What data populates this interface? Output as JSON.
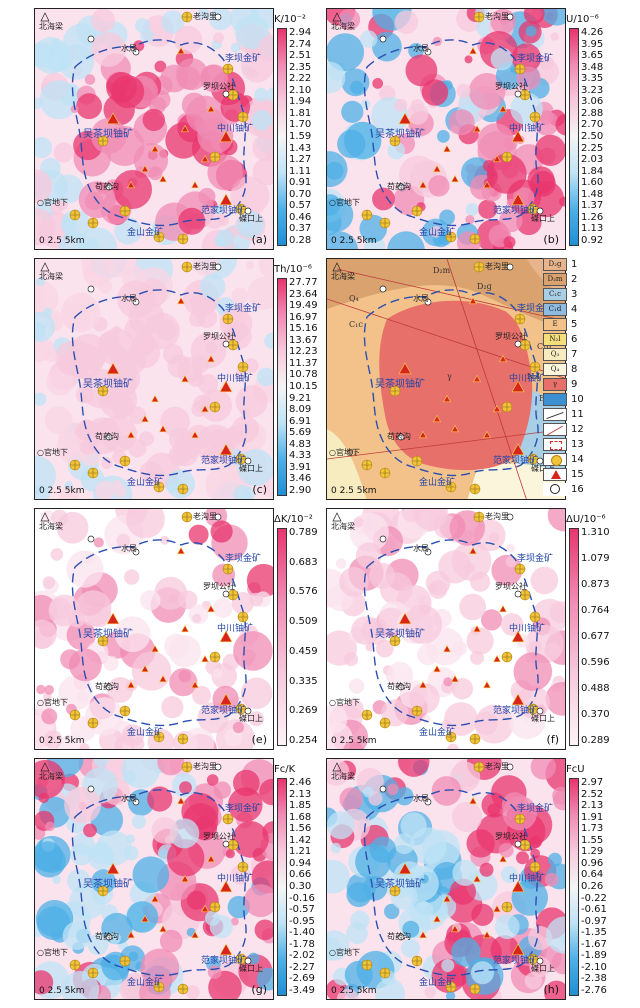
{
  "place_labels": {
    "beihailiang": "北海梁",
    "laogouli": "老沟里",
    "shuiju": "水局",
    "libajin": "李坝金矿",
    "luobagongshe": "罗坝公社",
    "zhongchuan": "中川铀矿",
    "wuchaba": "吴茶坝铀矿",
    "gouyaogou": "苟药沟",
    "guandixia": "○官地下",
    "fanjiaba": "范家坝铀矿",
    "jinshan": "金山金矿",
    "sikoushang": "磔口上"
  },
  "scale_label": "0     2.5    5km",
  "panels": [
    {
      "id": "a",
      "label": "(a)",
      "title": "K/10⁻²",
      "palette": "div",
      "ticks": [
        "2.94",
        "2.74",
        "2.51",
        "2.35",
        "2.22",
        "2.10",
        "1.94",
        "1.81",
        "1.70",
        "1.59",
        "1.43",
        "1.27",
        "1.11",
        "0.91",
        "0.70",
        "0.57",
        "0.46",
        "0.37",
        "0.28"
      ]
    },
    {
      "id": "b",
      "label": "(b)",
      "title": "U/10⁻⁶",
      "palette": "div",
      "ticks": [
        "4.26",
        "3.95",
        "3.65",
        "3.48",
        "3.35",
        "3.23",
        "3.06",
        "2.88",
        "2.70",
        "2.50",
        "2.25",
        "2.03",
        "1.84",
        "1.60",
        "1.48",
        "1.37",
        "1.26",
        "1.13",
        "0.92"
      ]
    },
    {
      "id": "c",
      "label": "(c)",
      "title": "Th/10⁻⁶",
      "palette": "div",
      "ticks": [
        "27.77",
        "23.64",
        "19.49",
        "16.97",
        "15.16",
        "13.67",
        "12.23",
        "11.37",
        "10.78",
        "10.15",
        "9.21",
        "8.09",
        "6.91",
        "5.69",
        "4.83",
        "4.33",
        "3.91",
        "3.46",
        "2.90"
      ]
    },
    {
      "id": "d",
      "label": "(d)",
      "title": "",
      "palette": "geo",
      "ticks": []
    },
    {
      "id": "e",
      "label": "(e)",
      "title": "ΔK/10⁻²",
      "palette": "seq",
      "ticks": [
        "0.789",
        "0.683",
        "0.576",
        "0.509",
        "0.459",
        "0.335",
        "0.269",
        "0.254"
      ]
    },
    {
      "id": "f",
      "label": "(f)",
      "title": "ΔU/10⁻⁶",
      "palette": "seq",
      "ticks": [
        "1.310",
        "1.079",
        "0.873",
        "0.764",
        "0.677",
        "0.596",
        "0.488",
        "0.370",
        "0.289"
      ]
    },
    {
      "id": "g",
      "label": "(g)",
      "title": "Fc/K",
      "palette": "div",
      "ticks": [
        "2.46",
        "2.13",
        "1.85",
        "1.68",
        "1.56",
        "1.42",
        "1.21",
        "0.94",
        "0.66",
        "0.30",
        "-0.16",
        "-0.57",
        "-0.95",
        "-1.40",
        "-1.78",
        "-2.02",
        "-2.27",
        "-2.69",
        "-3.49"
      ]
    },
    {
      "id": "h",
      "label": "(h)",
      "title": "FcU",
      "palette": "div",
      "ticks": [
        "2.97",
        "2.52",
        "2.13",
        "1.91",
        "1.73",
        "1.55",
        "1.29",
        "0.96",
        "0.64",
        "0.26",
        "-0.22",
        "-0.61",
        "-0.97",
        "-1.35",
        "-1.67",
        "-1.89",
        "-2.10",
        "-2.38",
        "-2.76"
      ]
    }
  ],
  "legend": [
    {
      "code": "D₂g",
      "num": "1",
      "color": "#e8b48c"
    },
    {
      "code": "D₂m",
      "num": "2",
      "color": "#d9a26e"
    },
    {
      "code": "C₁c",
      "num": "3",
      "color": "#a9cfe6"
    },
    {
      "code": "C₁d",
      "num": "4",
      "color": "#8fbbe0"
    },
    {
      "code": "E",
      "num": "5",
      "color": "#f2c28a"
    },
    {
      "code": "N₂l",
      "num": "6",
      "color": "#f5df7a"
    },
    {
      "code": "Q₃",
      "num": "7",
      "color": "#f7ecc0"
    },
    {
      "code": "Q₄",
      "num": "8",
      "color": "#fbf5dc"
    },
    {
      "code": "γ",
      "num": "9",
      "color": "#e8706a"
    },
    {
      "code": "",
      "num": "10",
      "color": "#3c8fd0"
    },
    {
      "code": "",
      "num": "11",
      "color": "#ffffff"
    },
    {
      "code": "",
      "num": "12",
      "color": "#ffffff"
    },
    {
      "code": "",
      "num": "13",
      "color": "#ffffff"
    },
    {
      "code": "",
      "num": "14",
      "color": "#ffffff"
    },
    {
      "code": "",
      "num": "15",
      "color": "#ffffff"
    },
    {
      "code": "",
      "num": "16",
      "color": "#ffffff"
    }
  ],
  "geology_labels": [
    "D₂m",
    "D₂g",
    "Q₄",
    "C₁c",
    "C₁d",
    "E",
    "N₂l",
    "Q₃",
    "γ"
  ],
  "colors": {
    "pink_hot": "#e8356e",
    "pink_mid": "#f08cb4",
    "pink_light": "#f7c9dc",
    "blue_mid": "#4fb0e6",
    "blue_light": "#bfe3f6",
    "granite": "#e8706a",
    "boundary_dash": "#2a4fb0",
    "label_blue": "#2246a8",
    "mine_gold": "#f0c33a",
    "deposit_red": "#d8241c"
  }
}
